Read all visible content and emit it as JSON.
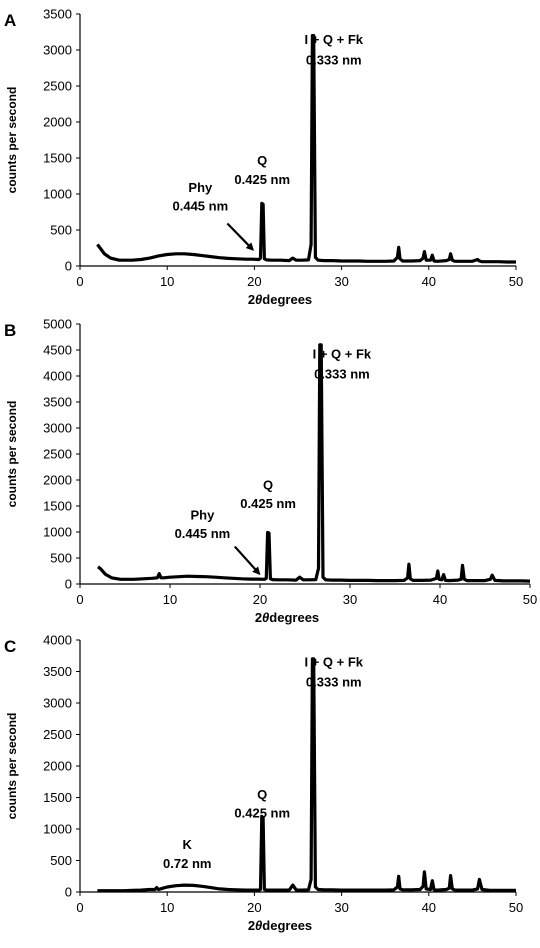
{
  "chart_data": [
    {
      "type": "line",
      "panel": "A",
      "xlabel_prefix": "2",
      "xlabel_theta": "θ",
      "xlabel_suffix": "degrees",
      "ylabel": "counts per second",
      "xlim": [
        0,
        50
      ],
      "ylim": [
        0,
        3500
      ],
      "xticks": [
        0,
        10,
        20,
        30,
        40,
        50
      ],
      "yticks": [
        0,
        500,
        1000,
        1500,
        2000,
        2500,
        3000,
        3500
      ],
      "grid": false,
      "series": [
        {
          "x": [
            2.0,
            2.3,
            2.8,
            3.5,
            4.5,
            6,
            7,
            8,
            9,
            10,
            11,
            12,
            13,
            14,
            15,
            16,
            17,
            18,
            19,
            19.8,
            20.5,
            20.7,
            20.85,
            21.0,
            21.15,
            21.4,
            22,
            23,
            24,
            24.4,
            24.8,
            25.5,
            26.2,
            26.5,
            26.65,
            26.8,
            27.0,
            27.3,
            28,
            29,
            30,
            31,
            32,
            33,
            34,
            35,
            36,
            36.4,
            36.55,
            36.7,
            37,
            38,
            39,
            39.35,
            39.5,
            39.7,
            40.2,
            40.4,
            40.6,
            41,
            42,
            42.35,
            42.5,
            42.7,
            43,
            44,
            45,
            45.6,
            45.8,
            46.1,
            47,
            48,
            49,
            50
          ],
          "y": [
            300,
            250,
            170,
            110,
            80,
            80,
            90,
            110,
            140,
            160,
            170,
            170,
            160,
            145,
            130,
            115,
            105,
            100,
            95,
            95,
            90,
            110,
            870,
            860,
            100,
            85,
            80,
            80,
            75,
            110,
            80,
            80,
            85,
            300,
            3200,
            3200,
            120,
            80,
            75,
            75,
            70,
            70,
            70,
            65,
            65,
            65,
            70,
            120,
            260,
            100,
            70,
            70,
            75,
            110,
            200,
            80,
            80,
            150,
            70,
            65,
            75,
            90,
            170,
            80,
            65,
            65,
            65,
            90,
            70,
            60,
            60,
            60,
            55,
            55
          ]
        }
      ],
      "annotations": [
        {
          "line1": "I + Q + Fk",
          "line2": "0.333 nm",
          "x": 29.1,
          "y1": 3080,
          "y2": 2800
        },
        {
          "line1": "Q",
          "line2": "0.425 nm",
          "x": 20.9,
          "y1": 1400,
          "y2": 1140
        },
        {
          "line1": "Phy",
          "line2": "0.445 nm",
          "x": 13.8,
          "y1": 1030,
          "y2": 770
        }
      ],
      "arrow": {
        "from": [
          16.9,
          590
        ],
        "to": [
          19.8,
          230
        ]
      }
    },
    {
      "type": "line",
      "panel": "B",
      "xlabel_prefix": "2",
      "xlabel_theta": "θ",
      "xlabel_suffix": "degrees",
      "ylabel": "counts per second",
      "xlim": [
        0,
        50
      ],
      "ylim": [
        0,
        5000
      ],
      "xticks": [
        0,
        10,
        20,
        30,
        40,
        50
      ],
      "yticks": [
        0,
        500,
        1000,
        1500,
        2000,
        2500,
        3000,
        3500,
        4000,
        4500,
        5000
      ],
      "grid": false,
      "series": [
        {
          "x": [
            2.0,
            2.3,
            2.8,
            3.5,
            4.5,
            6,
            7,
            8,
            8.6,
            8.8,
            9.0,
            9.3,
            10,
            11,
            12,
            13,
            14,
            15,
            16,
            17,
            18,
            19,
            19.8,
            20.5,
            20.7,
            20.85,
            21.0,
            21.15,
            21.4,
            22,
            23,
            24,
            24.4,
            24.8,
            25.5,
            26.2,
            26.5,
            26.65,
            26.8,
            27.0,
            27.3,
            28,
            29,
            30,
            31,
            32,
            33,
            34,
            35,
            36,
            36.4,
            36.55,
            36.7,
            37,
            38,
            39,
            39.6,
            39.75,
            39.9,
            40.2,
            40.4,
            40.6,
            41,
            42,
            42.35,
            42.5,
            42.7,
            43,
            44,
            45,
            45.6,
            45.8,
            46.1,
            47,
            48,
            49,
            50
          ],
          "y": [
            330,
            290,
            190,
            120,
            90,
            90,
            100,
            110,
            120,
            200,
            120,
            120,
            130,
            140,
            150,
            145,
            140,
            130,
            120,
            110,
            100,
            95,
            95,
            90,
            110,
            990,
            980,
            100,
            85,
            80,
            80,
            75,
            130,
            80,
            80,
            85,
            300,
            4600,
            4600,
            130,
            80,
            75,
            75,
            70,
            70,
            70,
            65,
            65,
            65,
            70,
            120,
            380,
            100,
            70,
            70,
            75,
            110,
            250,
            90,
            80,
            180,
            70,
            65,
            75,
            90,
            360,
            90,
            65,
            65,
            65,
            90,
            170,
            70,
            60,
            60,
            60,
            55
          ]
        }
      ],
      "annotations": [
        {
          "line1": "I + Q + Fk",
          "line2": "0.333 nm",
          "x": 29.1,
          "y1": 4340,
          "y2": 3950
        },
        {
          "line1": "Q",
          "line2": "0.425 nm",
          "x": 20.9,
          "y1": 1820,
          "y2": 1460
        },
        {
          "line1": "Phy",
          "line2": "0.445 nm",
          "x": 13.6,
          "y1": 1240,
          "y2": 880
        }
      ],
      "arrow": {
        "from": [
          17.2,
          720
        ],
        "to": [
          19.9,
          200
        ]
      }
    },
    {
      "type": "line",
      "panel": "C",
      "xlabel_prefix": "2",
      "xlabel_theta": "θ",
      "xlabel_suffix": "degrees",
      "ylabel": "counts per second",
      "xlim": [
        0,
        50
      ],
      "ylim": [
        0,
        4000
      ],
      "xticks": [
        0,
        10,
        20,
        30,
        40,
        50
      ],
      "yticks": [
        0,
        500,
        1000,
        1500,
        2000,
        2500,
        3000,
        3500,
        4000
      ],
      "grid": false,
      "series": [
        {
          "x": [
            2.0,
            3,
            4,
            5,
            6,
            7,
            8,
            8.6,
            8.8,
            9.0,
            9.5,
            10,
            11,
            12,
            13,
            14,
            15,
            16,
            17,
            18,
            19,
            20,
            20.5,
            20.7,
            20.85,
            21.0,
            21.15,
            21.4,
            22,
            23,
            24,
            24.4,
            24.8,
            25.5,
            26.2,
            26.5,
            26.65,
            26.8,
            27.0,
            27.3,
            28,
            29,
            30,
            31,
            32,
            33,
            34,
            35,
            36,
            36.4,
            36.55,
            36.7,
            37,
            38,
            39,
            39.35,
            39.5,
            39.7,
            40.2,
            40.4,
            40.6,
            41,
            42,
            42.35,
            42.5,
            42.7,
            43,
            44,
            45,
            45.6,
            45.8,
            46.1,
            47,
            48,
            49,
            50
          ],
          "y": [
            20,
            20,
            20,
            20,
            25,
            30,
            40,
            40,
            70,
            40,
            60,
            80,
            100,
            110,
            105,
            90,
            70,
            50,
            40,
            35,
            30,
            30,
            30,
            40,
            1200,
            1180,
            40,
            30,
            30,
            30,
            30,
            110,
            30,
            30,
            35,
            200,
            3700,
            3700,
            80,
            40,
            35,
            35,
            30,
            30,
            30,
            30,
            30,
            30,
            35,
            80,
            250,
            50,
            35,
            35,
            40,
            90,
            320,
            50,
            40,
            180,
            35,
            30,
            40,
            60,
            260,
            50,
            30,
            30,
            30,
            50,
            200,
            40,
            25,
            25,
            25,
            25
          ]
        }
      ],
      "annotations": [
        {
          "line1": "I + Q + Fk",
          "line2": "0.333 nm",
          "x": 29.1,
          "y1": 3580,
          "y2": 3260
        },
        {
          "line1": "Q",
          "line2": "0.425 nm",
          "x": 20.9,
          "y1": 1480,
          "y2": 1180
        },
        {
          "line1": "K",
          "line2": "0.72 nm",
          "x": 12.3,
          "y1": 680,
          "y2": 380
        }
      ],
      "arrow": null
    }
  ]
}
